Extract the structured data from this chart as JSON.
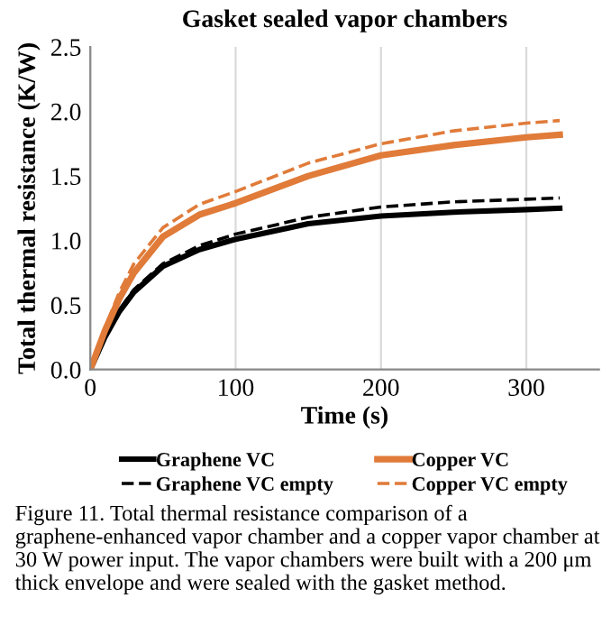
{
  "chart_data": {
    "type": "line",
    "title": "Gasket sealed vapor chambers",
    "xlabel": "Time (s)",
    "ylabel": "Total thermal resistance (K/W)",
    "x": [
      0,
      10,
      20,
      30,
      50,
      75,
      100,
      150,
      200,
      250,
      300,
      323
    ],
    "series": [
      {
        "name": "Graphene VC",
        "color": "#000000",
        "line_style": "solid",
        "values": [
          0,
          0.25,
          0.45,
          0.6,
          0.8,
          0.93,
          1.01,
          1.13,
          1.19,
          1.22,
          1.24,
          1.25
        ]
      },
      {
        "name": "Graphene VC empty",
        "color": "#000000",
        "line_style": "dashed",
        "values": [
          0,
          0.25,
          0.46,
          0.62,
          0.82,
          0.96,
          1.05,
          1.18,
          1.26,
          1.3,
          1.32,
          1.33
        ]
      },
      {
        "name": "Copper VC",
        "color": "#e07b39",
        "line_style": "solid",
        "values": [
          0,
          0.3,
          0.55,
          0.75,
          1.03,
          1.2,
          1.29,
          1.5,
          1.66,
          1.74,
          1.8,
          1.82
        ]
      },
      {
        "name": "Copper VC empty",
        "color": "#e07b39",
        "line_style": "dashed",
        "values": [
          0,
          0.32,
          0.6,
          0.82,
          1.1,
          1.28,
          1.38,
          1.6,
          1.75,
          1.85,
          1.91,
          1.93
        ]
      }
    ],
    "xlim": [
      0,
      350
    ],
    "xticks": [
      0,
      100,
      200,
      300
    ],
    "ylim": [
      0,
      2.5
    ],
    "yticks": [
      {
        "value": 0,
        "label": "0.0"
      },
      {
        "value": 0.5,
        "label": "0.5"
      },
      {
        "value": 1,
        "label": "1.0"
      },
      {
        "value": 1.5,
        "label": "1.5"
      },
      {
        "value": 2,
        "label": "2.0"
      },
      {
        "value": 2.5,
        "label": "2.5"
      }
    ],
    "grid": "x",
    "legend": "bottom",
    "marker": "none",
    "annotations": [
      "Figure 11. Total thermal resistance comparison of a graphene-enhanced vapor chamber and a copper vapor chamber at 30 W power input. The vapor chambers were built with a 200 μm thick envelope and were sealed with the gasket method."
    ]
  }
}
